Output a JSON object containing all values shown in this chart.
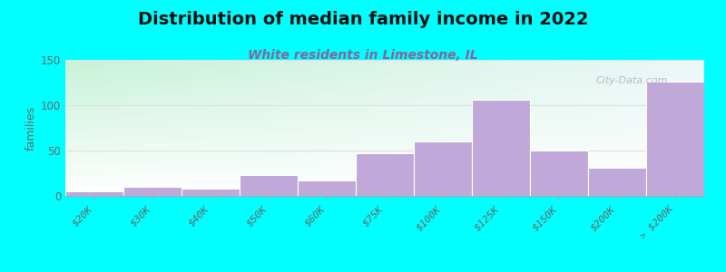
{
  "title": "Distribution of median family income in 2022",
  "subtitle": "White residents in Limestone, IL",
  "ylabel": "families",
  "bar_labels": [
    "$20K",
    "$30K",
    "$40K",
    "$50K",
    "$60K",
    "$75K",
    "$100K",
    "$125K",
    "$150K",
    "$200K",
    "> $200K"
  ],
  "bar_values": [
    5,
    10,
    8,
    23,
    17,
    47,
    60,
    106,
    50,
    31,
    126
  ],
  "bar_color": "#c0a8d8",
  "bar_edge_color": "#ffffff",
  "ylim": [
    0,
    150
  ],
  "yticks": [
    0,
    50,
    100,
    150
  ],
  "bg_color": "#00FFFF",
  "gradient_color_topleft": "#c8f0d8",
  "gradient_color_topright": "#e8f8f8",
  "gradient_color_bottom": "#ffffff",
  "title_fontsize": 14,
  "subtitle_fontsize": 10,
  "subtitle_color": "#886699",
  "watermark": "City-Data.com",
  "grid_color": "#e0e0e0",
  "tick_label_color": "#666666"
}
